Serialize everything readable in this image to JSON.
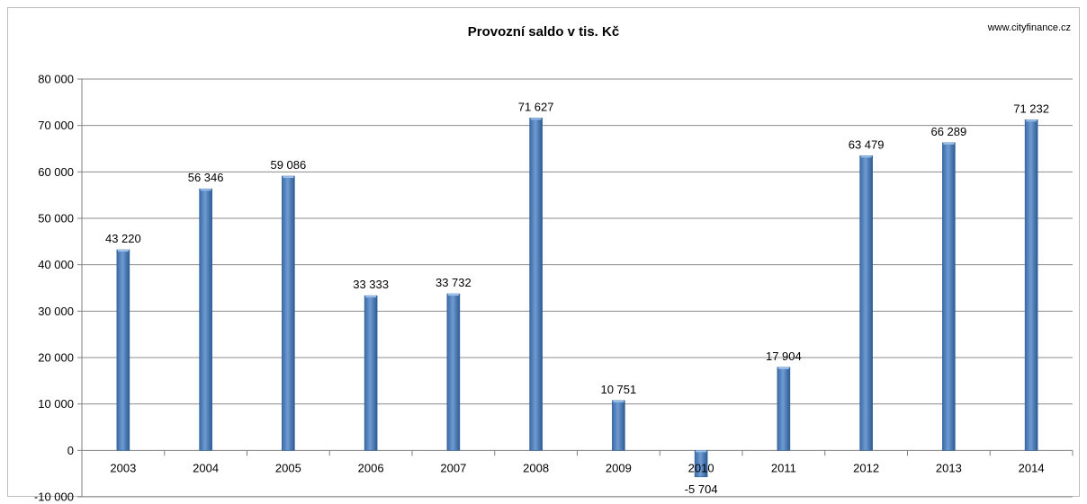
{
  "source": "www.cityfinance.cz",
  "colors": {
    "bar": "#4f81bd",
    "bar_dark": "#2f5f97",
    "grid": "#8c8c8c"
  },
  "chart_data": {
    "type": "bar",
    "title": "Provozní saldo  v tis. Kč",
    "categories": [
      "2003",
      "2004",
      "2005",
      "2006",
      "2007",
      "2008",
      "2009",
      "2010",
      "2011",
      "2012",
      "2013",
      "2014"
    ],
    "values": [
      43220,
      56346,
      59086,
      33333,
      33732,
      71627,
      10751,
      -5704,
      17904,
      63479,
      66289,
      71232
    ],
    "value_labels": [
      "43 220",
      "56 346",
      "59 086",
      "33 333",
      "33 732",
      "71 627",
      "10 751",
      "-5 704",
      "17 904",
      "63 479",
      "66 289",
      "71 232"
    ],
    "y_ticks": [
      "80 000",
      "70 000",
      "60 000",
      "50 000",
      "40 000",
      "30 000",
      "20 000",
      "10 000",
      "0",
      "-10 000"
    ],
    "y_tick_values": [
      80000,
      70000,
      60000,
      50000,
      40000,
      30000,
      20000,
      10000,
      0,
      -10000
    ],
    "ylim": [
      -10000,
      80000
    ],
    "xlabel": "",
    "ylabel": "",
    "grid": true,
    "legend": "none"
  }
}
